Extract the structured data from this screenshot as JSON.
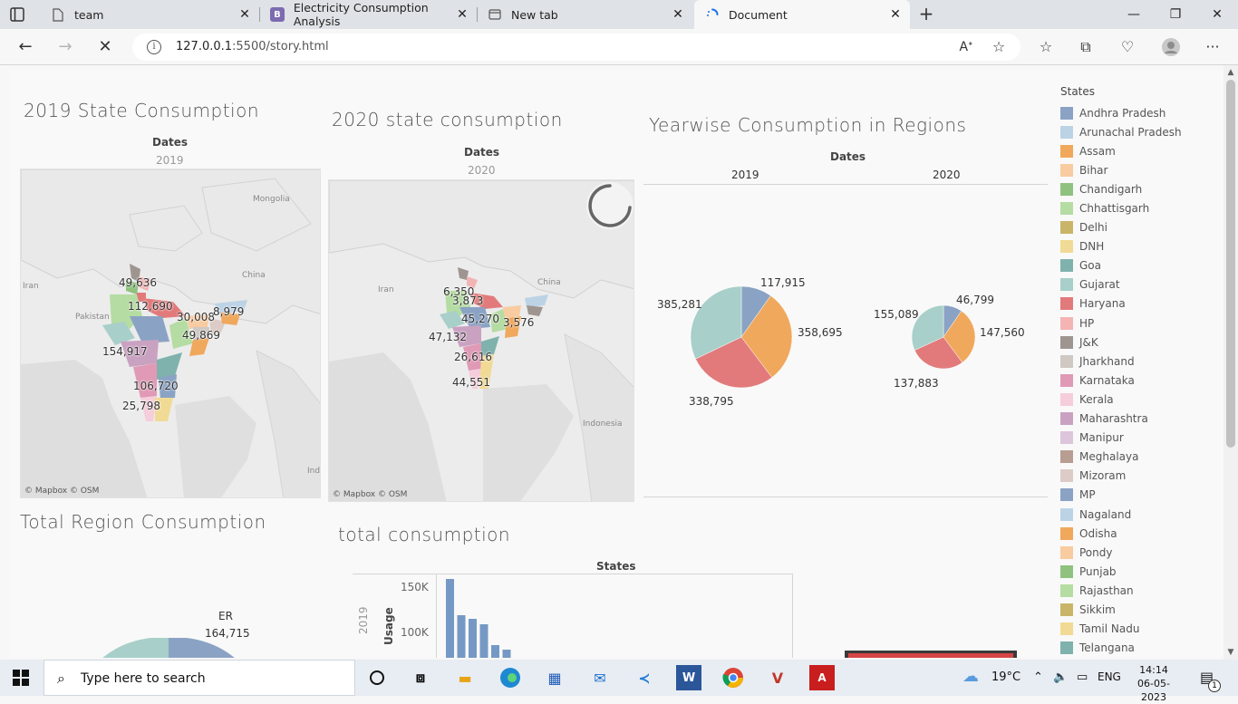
{
  "browser": {
    "tabs": [
      {
        "title": "team",
        "icon": "page-icon"
      },
      {
        "title": "Electricity Consumption Analysis",
        "icon": "bootstrap-icon"
      },
      {
        "title": "New tab",
        "icon": "newtab-icon"
      },
      {
        "title": "Document",
        "icon": "loading-icon",
        "active": true
      }
    ],
    "url_host": "127.0.0.1",
    "url_rest": ":5500/story.html"
  },
  "dashboard": {
    "map2019": {
      "title": "2019 State Consumption",
      "header": "Dates",
      "sub": "2019",
      "labels": [
        "49,636",
        "112,690",
        "30,008",
        "8,979",
        "49,869",
        "154,917",
        "106,720",
        "25,798"
      ],
      "place_names": [
        "Mongolia",
        "China",
        "Iran",
        "Pakistan",
        "Ind"
      ],
      "attribution": "© Mapbox  © OSM"
    },
    "map2020": {
      "title": "2020 state consumption",
      "header": "Dates",
      "sub": "2020",
      "labels": [
        "6,350",
        "3,873",
        "45,270",
        "3,576",
        "47,132",
        "26,616",
        "44,551"
      ],
      "place_names": [
        "Iran",
        "China",
        "Indonesia"
      ],
      "attribution": "© Mapbox  © OSM"
    },
    "yearwise": {
      "title": "Yearwise Consumption in Regions",
      "header": "Dates",
      "years": [
        "2019",
        "2020"
      ],
      "pie2019": {
        "labels": [
          "117,915",
          "358,695",
          "338,795",
          "385,281"
        ]
      },
      "pie2020": {
        "labels": [
          "46,799",
          "147,560",
          "137,883",
          "155,089"
        ]
      }
    },
    "total_region": {
      "title": "Total Region Consumption",
      "label_name": "ER",
      "label_value": "164,715"
    },
    "total_consumption": {
      "title": "total consumption",
      "header": "States",
      "year": "2019",
      "axis_label": "Usage",
      "ticks": [
        "150K",
        "100K"
      ]
    },
    "legend": {
      "title": "States",
      "items": [
        {
          "name": "Andhra Pradesh",
          "color": "#8aa3c4"
        },
        {
          "name": "Arunachal Pradesh",
          "color": "#bcd3e6"
        },
        {
          "name": "Assam",
          "color": "#f0a85d"
        },
        {
          "name": "Bihar",
          "color": "#f8cba0"
        },
        {
          "name": "Chandigarh",
          "color": "#8fc27e"
        },
        {
          "name": "Chhattisgarh",
          "color": "#b5dca2"
        },
        {
          "name": "Delhi",
          "color": "#c9b46a"
        },
        {
          "name": "DNH",
          "color": "#f1da95"
        },
        {
          "name": "Goa",
          "color": "#7fb2ac"
        },
        {
          "name": "Gujarat",
          "color": "#a8cfc9"
        },
        {
          "name": "Haryana",
          "color": "#e27a7b"
        },
        {
          "name": "HP",
          "color": "#f4b4b4"
        },
        {
          "name": "J&K",
          "color": "#9e9590"
        },
        {
          "name": "Jharkhand",
          "color": "#cfc8c3"
        },
        {
          "name": "Karnataka",
          "color": "#e09ab5"
        },
        {
          "name": "Kerala",
          "color": "#f5cddb"
        },
        {
          "name": "Maharashtra",
          "color": "#c9a2c1"
        },
        {
          "name": "Manipur",
          "color": "#ddc5dc"
        },
        {
          "name": "Meghalaya",
          "color": "#b89d92"
        },
        {
          "name": "Mizoram",
          "color": "#dccbc6"
        },
        {
          "name": "MP",
          "color": "#8aa3c4"
        },
        {
          "name": "Nagaland",
          "color": "#bcd3e6"
        },
        {
          "name": "Odisha",
          "color": "#f0a85d"
        },
        {
          "name": "Pondy",
          "color": "#f8cba0"
        },
        {
          "name": "Punjab",
          "color": "#8fc27e"
        },
        {
          "name": "Rajasthan",
          "color": "#b5dca2"
        },
        {
          "name": "Sikkim",
          "color": "#c9b46a"
        },
        {
          "name": "Tamil Nadu",
          "color": "#f1da95"
        },
        {
          "name": "Telangana",
          "color": "#7fb2ac"
        }
      ]
    }
  },
  "chart_data": [
    {
      "type": "pie",
      "title": "",
      "categories": [
        "Andhra Pradesh",
        "Assam",
        "Haryana",
        "Gujarat"
      ],
      "values": [
        117915,
        358695,
        338795,
        385281
      ]
    },
    {
      "type": "pie",
      "title": "",
      "categories": [
        "Andhra Pradesh",
        "Assam",
        "Haryana",
        "Gujarat"
      ],
      "values": [
        46799,
        147560,
        137883,
        155089
      ]
    },
    {
      "type": "bar",
      "title": "total consumption",
      "xlabel": "States",
      "ylabel": "Usage",
      "y_ticks": [
        "100K",
        "150K"
      ],
      "values": [
        157000,
        117000,
        113000,
        107000,
        84000,
        79000
      ]
    }
  ],
  "taskbar": {
    "search_placeholder": "Type here to search",
    "weather": "19°C",
    "lang": "ENG",
    "time": "14:14",
    "date": "06-05-2023",
    "notif_count": "1"
  }
}
